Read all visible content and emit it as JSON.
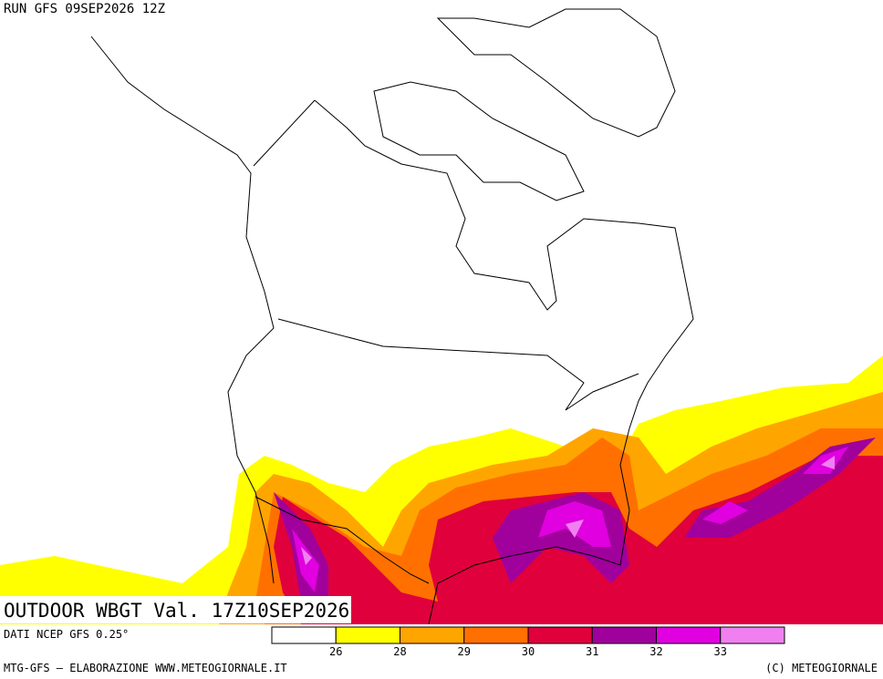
{
  "header": {
    "run": "RUN GFS 09SEP2026 12Z"
  },
  "map": {
    "title": "OUTDOOR WBGT Val. 17Z10SEP2026",
    "source": "DATI NCEP GFS 0.25°"
  },
  "legend": {
    "colors": [
      "#ffffff",
      "#ffff00",
      "#ffa500",
      "#ff7000",
      "#e0003c",
      "#a0009c",
      "#e000e0",
      "#f080f0"
    ],
    "labels": [
      "26",
      "28",
      "29",
      "30",
      "31",
      "32",
      "33"
    ]
  },
  "footer": {
    "left": "MTG-GFS — ELABORAZIONE WWW.METEOGIORNALE.IT",
    "right": "(C) METEOGIORNALE"
  }
}
